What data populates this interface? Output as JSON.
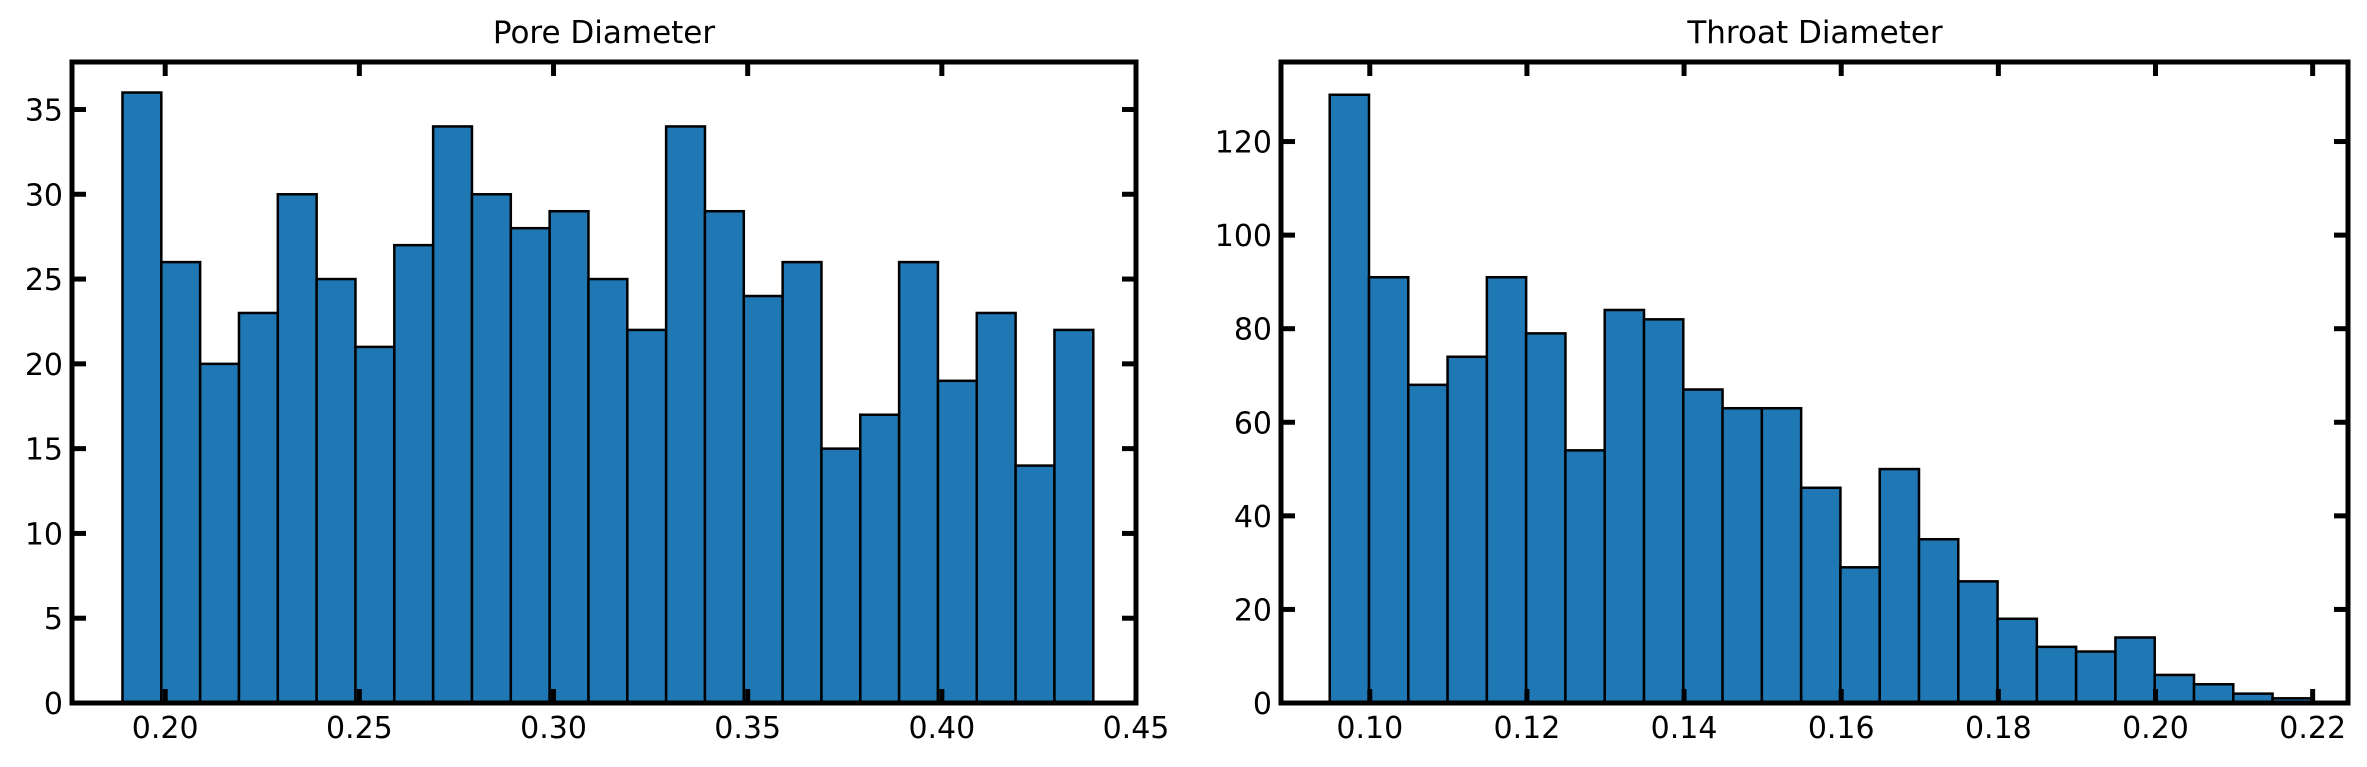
{
  "chart_data": [
    {
      "type": "bar",
      "title": "Pore Diameter",
      "xlabel": "",
      "ylabel": "",
      "grid": false,
      "bar_color": "#1f77b4",
      "edge_color": "#000000",
      "xlim": [
        0.176,
        0.45
      ],
      "ylim": [
        0,
        37.8
      ],
      "xticks": [
        0.2,
        0.25,
        0.3,
        0.35,
        0.4,
        0.45
      ],
      "xtick_labels": [
        "0.20",
        "0.25",
        "0.30",
        "0.35",
        "0.40",
        "0.45"
      ],
      "yticks": [
        0,
        5,
        10,
        15,
        20,
        25,
        30,
        35
      ],
      "ytick_labels": [
        "0",
        "5",
        "10",
        "15",
        "20",
        "25",
        "30",
        "35"
      ],
      "bin_edges": [
        0.189,
        0.199,
        0.209,
        0.219,
        0.229,
        0.239,
        0.249,
        0.259,
        0.269,
        0.279,
        0.289,
        0.299,
        0.309,
        0.319,
        0.329,
        0.339,
        0.349,
        0.359,
        0.369,
        0.379,
        0.389,
        0.399,
        0.409,
        0.419,
        0.429,
        0.439
      ],
      "values": [
        36,
        26,
        20,
        23,
        30,
        25,
        21,
        27,
        34,
        30,
        28,
        29,
        25,
        22,
        34,
        29,
        24,
        26,
        15,
        17,
        26,
        19,
        23,
        14,
        22
      ]
    },
    {
      "type": "bar",
      "title": "Throat Diameter",
      "xlabel": "",
      "ylabel": "",
      "grid": false,
      "bar_color": "#1f77b4",
      "edge_color": "#000000",
      "xlim": [
        0.0887,
        0.2245
      ],
      "ylim": [
        0,
        137
      ],
      "xticks": [
        0.1,
        0.12,
        0.14,
        0.16,
        0.18,
        0.2,
        0.22
      ],
      "xtick_labels": [
        "0.10",
        "0.12",
        "0.14",
        "0.16",
        "0.18",
        "0.20",
        "0.22"
      ],
      "yticks": [
        0,
        20,
        40,
        60,
        80,
        100,
        120
      ],
      "ytick_labels": [
        "0",
        "20",
        "40",
        "60",
        "80",
        "100",
        "120"
      ],
      "bin_edges": [
        0.0949,
        0.0999,
        0.1049,
        0.1099,
        0.1149,
        0.1199,
        0.1249,
        0.1299,
        0.1349,
        0.1399,
        0.1449,
        0.1499,
        0.1549,
        0.1599,
        0.1649,
        0.1699,
        0.1749,
        0.1799,
        0.1849,
        0.1899,
        0.1949,
        0.1999,
        0.2049,
        0.2099,
        0.2149,
        0.2199
      ],
      "values": [
        130,
        91,
        68,
        74,
        91,
        79,
        54,
        84,
        82,
        67,
        63,
        63,
        46,
        29,
        50,
        35,
        26,
        18,
        12,
        11,
        14,
        6,
        4,
        2,
        1
      ]
    }
  ]
}
